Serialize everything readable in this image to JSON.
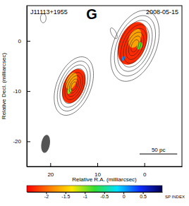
{
  "chart_data": {
    "type": "contour",
    "title": "J11113+1955",
    "panel": "G",
    "date": "2008-05-15",
    "x_label": "Relative R.A. (milliarcsec)",
    "y_label": "Relative Decl. (milliarcsec)",
    "xlim": [
      25,
      -8
    ],
    "ylim": [
      -25,
      7
    ],
    "xticks": [
      20,
      10,
      0
    ],
    "yticks": [
      0,
      -10,
      -20
    ],
    "components": [
      {
        "x": 2,
        "y": -1,
        "pa": -25,
        "contours": [
          [
            7.5,
            4.5
          ],
          [
            6.4,
            3.8
          ],
          [
            5.4,
            3.2
          ],
          [
            4.5,
            2.6
          ],
          [
            3.7,
            2.1
          ],
          [
            2.9,
            1.6
          ],
          [
            2.1,
            1.1
          ],
          [
            1.3,
            0.7
          ]
        ],
        "spectral_index": [
          {
            "x": 2.5,
            "y": -0.5,
            "a": 4.5,
            "b": 2.8,
            "value": -2.3
          },
          {
            "x": 2,
            "y": 0.5,
            "a": 2,
            "b": 1.2,
            "value": -1.7
          },
          {
            "x": 1,
            "y": -1,
            "a": 0.8,
            "b": 0.5,
            "value": -0.9
          },
          {
            "x": 4.5,
            "y": -3.5,
            "a": 0.5,
            "b": 0.3,
            "value": 0.1
          }
        ]
      },
      {
        "x": 15,
        "y": -9,
        "pa": -25,
        "contours": [
          [
            6.2,
            3.6
          ],
          [
            5.3,
            3.0
          ],
          [
            4.5,
            2.5
          ],
          [
            3.7,
            2.0
          ],
          [
            2.9,
            1.6
          ],
          [
            2.2,
            1.2
          ],
          [
            1.5,
            0.8
          ],
          [
            0.9,
            0.5
          ]
        ],
        "spectral_index": [
          {
            "x": 15,
            "y": -9,
            "a": 3.6,
            "b": 2.2,
            "value": -2.3
          },
          {
            "x": 15.5,
            "y": -8,
            "a": 1.8,
            "b": 1,
            "value": -1.7
          },
          {
            "x": 16,
            "y": -10,
            "a": 0.6,
            "b": 0.4,
            "value": -1
          }
        ]
      },
      {
        "x": 21.5,
        "y": 4.5,
        "pa": 0,
        "contours": [
          [
            0.9,
            0.6
          ]
        ],
        "spectral_index": []
      },
      {
        "x": 6.5,
        "y": 1.5,
        "pa": 30,
        "contours": [
          [
            1.2,
            0.5
          ]
        ],
        "spectral_index": []
      }
    ],
    "beam": {
      "x": 21,
      "y": -20.5,
      "a": 1.8,
      "b": 0.9,
      "pa": -10
    },
    "scale_bar": {
      "label": "50 pc",
      "x": [
        1,
        -7
      ],
      "y": -22.5
    },
    "colorbar": {
      "label": "SP INDEX",
      "range": [
        -2.5,
        1
      ],
      "ticks": [
        -2,
        -1.5,
        -1,
        -0.5,
        0,
        0.5
      ]
    }
  }
}
